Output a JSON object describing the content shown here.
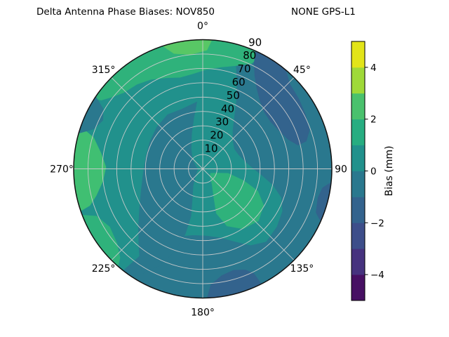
{
  "title": {
    "left": "Delta Antenna Phase Biases: NOV850",
    "right": "NONE GPS-L1"
  },
  "chart_data": {
    "type": "heatmap",
    "subtype": "polar_filled_contour_skyplot",
    "radial_axis": {
      "max": 90,
      "grid_step": 10,
      "tick_labels": [
        "10",
        "20",
        "30",
        "40",
        "50",
        "60",
        "70",
        "80",
        "90"
      ],
      "tick_label_azimuth_deg": 22.5
    },
    "angular_axis": {
      "spoke_step_deg": 45,
      "ticks": [
        {
          "az": 0,
          "label": "0°"
        },
        {
          "az": 45,
          "label": "45°"
        },
        {
          "az": 90,
          "label": "90"
        },
        {
          "az": 135,
          "label": "135°"
        },
        {
          "az": 180,
          "label": "180°"
        },
        {
          "az": 225,
          "label": "225°"
        },
        {
          "az": 270,
          "label": "270°"
        },
        {
          "az": 315,
          "label": "315°"
        }
      ]
    },
    "grid_color": "#cccccc",
    "rim_color": "#111111",
    "colorbar": {
      "label": "Bias (mm)",
      "range": [
        -5,
        5
      ],
      "tick_values": [
        4,
        2,
        0,
        -2,
        -4
      ],
      "tick_labels": [
        "4",
        "2",
        "0",
        "−2",
        "−4"
      ],
      "band_colors_bottom_to_top": [
        "#471063",
        "#46327e",
        "#3d4e8a",
        "#33638d",
        "#2a788e",
        "#21918c",
        "#27ad81",
        "#4ac16d",
        "#9fd938",
        "#e2e419"
      ]
    },
    "base_band": {
      "bias_mm": "0 to 1",
      "color": "#21918c"
    },
    "regions": [
      {
        "name": "east-south-negative",
        "bias_mm": "-1 to 0",
        "color": "#2a788e",
        "rim": [
          15,
          218
        ],
        "points": [
          [
            215,
            0.78
          ],
          [
            207,
            0.64
          ],
          [
            198,
            0.55
          ],
          [
            188,
            0.52
          ],
          [
            177,
            0.52
          ],
          [
            166,
            0.55
          ],
          [
            156,
            0.62
          ],
          [
            148,
            0.7
          ],
          [
            139,
            0.75
          ],
          [
            128,
            0.73
          ],
          [
            118,
            0.7
          ],
          [
            110,
            0.65
          ],
          [
            103,
            0.56
          ],
          [
            96,
            0.46
          ],
          [
            88,
            0.38
          ],
          [
            79,
            0.33
          ],
          [
            69,
            0.3
          ],
          [
            58,
            0.29
          ],
          [
            47,
            0.32
          ],
          [
            38,
            0.38
          ],
          [
            31,
            0.48
          ],
          [
            26,
            0.6
          ],
          [
            21,
            0.74
          ],
          [
            17,
            0.88
          ]
        ]
      },
      {
        "name": "center-west-negative",
        "bias_mm": "-1 to 0",
        "color": "#2a788e",
        "rim": null,
        "points": [
          [
            355,
            0.52
          ],
          [
            341,
            0.49
          ],
          [
            327,
            0.5
          ],
          [
            312,
            0.48
          ],
          [
            297,
            0.46
          ],
          [
            282,
            0.45
          ],
          [
            267,
            0.46
          ],
          [
            252,
            0.5
          ],
          [
            239,
            0.57
          ],
          [
            228,
            0.67
          ],
          [
            220,
            0.77
          ],
          [
            214,
            0.87
          ],
          [
            210,
            0.94
          ],
          [
            204,
            0.82
          ],
          [
            199,
            0.68
          ],
          [
            195,
            0.52
          ],
          [
            194,
            0.38
          ],
          [
            199,
            0.25
          ],
          [
            210,
            0.15
          ],
          [
            225,
            0.08
          ],
          [
            245,
            0.05
          ],
          [
            268,
            0.04
          ],
          [
            292,
            0.06
          ],
          [
            313,
            0.11
          ],
          [
            330,
            0.18
          ],
          [
            342,
            0.28
          ],
          [
            350,
            0.4
          ]
        ]
      },
      {
        "name": "southeast-inner-green",
        "bias_mm": "1 to 2",
        "color": "#2fb27b",
        "rim": null,
        "points": [
          [
            100,
            0.2
          ],
          [
            106,
            0.33
          ],
          [
            112,
            0.46
          ],
          [
            121,
            0.55
          ],
          [
            133,
            0.59
          ],
          [
            146,
            0.56
          ],
          [
            157,
            0.48
          ],
          [
            163,
            0.36
          ],
          [
            159,
            0.24
          ],
          [
            149,
            0.14
          ],
          [
            135,
            0.08
          ],
          [
            119,
            0.07
          ],
          [
            107,
            0.11
          ]
        ]
      },
      {
        "name": "north-rim-green-band",
        "bias_mm": "1 to 2",
        "color": "#2fb27b",
        "rim": [
          303,
          387
        ],
        "points": [
          [
            25,
            0.9
          ],
          [
            18,
            0.84
          ],
          [
            10,
            0.8
          ],
          [
            2,
            0.77
          ],
          [
            354,
            0.74
          ],
          [
            346,
            0.73
          ],
          [
            338,
            0.76
          ],
          [
            330,
            0.8
          ],
          [
            322,
            0.83
          ],
          [
            314,
            0.85
          ],
          [
            308,
            0.9
          ],
          [
            304,
            0.95
          ]
        ]
      },
      {
        "name": "west-rim-green-patch",
        "bias_mm": "2 to 3",
        "color": "#40bf72",
        "rim": [
          251,
          289
        ],
        "points": [
          [
            286,
            0.88
          ],
          [
            279,
            0.8
          ],
          [
            271,
            0.75
          ],
          [
            263,
            0.78
          ],
          [
            256,
            0.85
          ],
          [
            252,
            0.92
          ]
        ]
      },
      {
        "name": "southwest-rim-green-band",
        "bias_mm": "1 to 2",
        "color": "#2fb27b",
        "rim": [
          221,
          249
        ],
        "points": [
          [
            246,
            0.9
          ],
          [
            238,
            0.85
          ],
          [
            229,
            0.88
          ],
          [
            223,
            0.94
          ]
        ]
      },
      {
        "name": "north-rim-bright-green",
        "bias_mm": "2 to 3",
        "color": "#58c765",
        "rim": [
          342,
          364
        ],
        "points": [
          [
            2,
            0.92
          ],
          [
            354,
            0.89
          ],
          [
            346,
            0.92
          ]
        ]
      },
      {
        "name": "northwest-rim-dark-sliver",
        "bias_mm": "-1 to 0",
        "color": "#2a788e",
        "rim": [
          286,
          304
        ],
        "points": [
          [
            301,
            0.9
          ],
          [
            296,
            0.86
          ],
          [
            290,
            0.9
          ]
        ]
      },
      {
        "name": "northeast-blue-blob",
        "bias_mm": "-2 to -1",
        "color": "#33638d",
        "rim": [
          24,
          40
        ],
        "points": [
          [
            46,
            0.94
          ],
          [
            54,
            0.92
          ],
          [
            62,
            0.9
          ],
          [
            70,
            0.88
          ],
          [
            75,
            0.83
          ],
          [
            76,
            0.76
          ],
          [
            71,
            0.7
          ],
          [
            63,
            0.66
          ],
          [
            55,
            0.64
          ],
          [
            47,
            0.65
          ],
          [
            40,
            0.69
          ],
          [
            34,
            0.75
          ],
          [
            29,
            0.83
          ],
          [
            26,
            0.91
          ]
        ]
      },
      {
        "name": "south-rim-blue-blob",
        "bias_mm": "-2 to -1",
        "color": "#33638d",
        "rim": [
          153,
          178
        ],
        "points": [
          [
            176,
            0.9
          ],
          [
            170,
            0.84
          ],
          [
            163,
            0.82
          ],
          [
            157,
            0.85
          ],
          [
            154,
            0.9
          ]
        ]
      },
      {
        "name": "east-rim-blue-sliver",
        "bias_mm": "-2 to -1",
        "color": "#33638d",
        "rim": [
          96,
          114
        ],
        "points": [
          [
            111,
            0.94
          ],
          [
            104,
            0.92
          ],
          [
            99,
            0.94
          ]
        ]
      }
    ]
  }
}
